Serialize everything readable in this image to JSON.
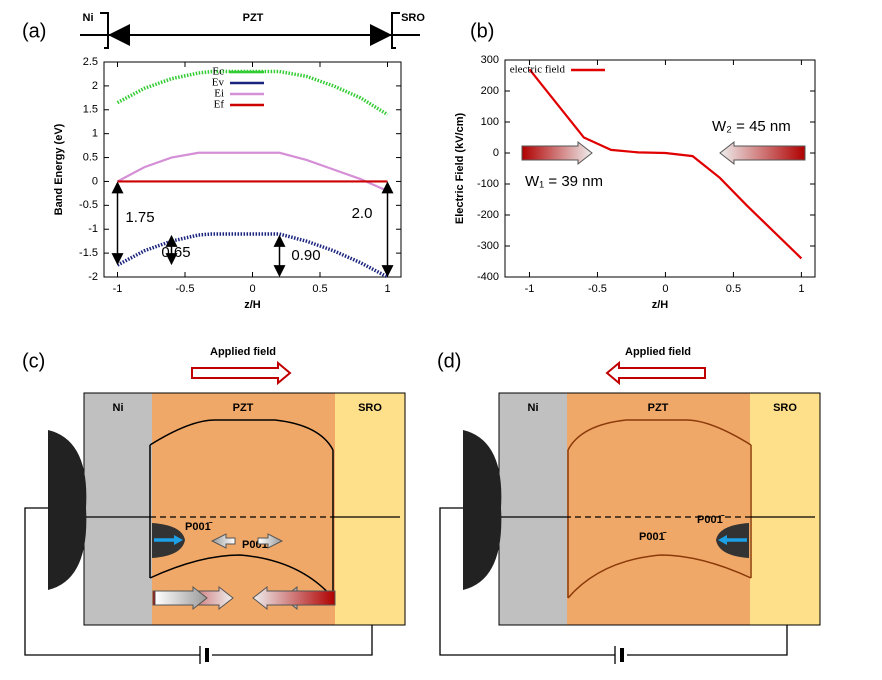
{
  "chart_data": [
    {
      "type": "line",
      "panel_label": "(a)",
      "header": [
        "Ni",
        "PZT",
        "SRO"
      ],
      "x_label": "z/H",
      "y_label": "Band Energy (eV)",
      "x": [
        -1,
        -0.8,
        -0.6,
        -0.4,
        -0.3,
        0,
        0.2,
        0.4,
        0.6,
        0.8,
        1
      ],
      "series": [
        {
          "name": "Ec",
          "color": "#33cc33",
          "style": "dotted",
          "values": [
            1.65,
            1.95,
            2.15,
            2.27,
            2.3,
            2.3,
            2.3,
            2.2,
            2.0,
            1.75,
            1.4
          ]
        },
        {
          "name": "Ev",
          "color": "#1a237e",
          "style": "dotted",
          "values": [
            -1.75,
            -1.45,
            -1.25,
            -1.12,
            -1.1,
            -1.1,
            -1.1,
            -1.25,
            -1.45,
            -1.7,
            -2.0
          ]
        },
        {
          "name": "Ei",
          "color": "#d58fd6",
          "style": "solid",
          "values": [
            0,
            0.3,
            0.5,
            0.6,
            0.6,
            0.6,
            0.6,
            0.45,
            0.25,
            0.05,
            -0.2
          ]
        },
        {
          "name": "Ef",
          "color": "#cc0000",
          "style": "solid",
          "values": [
            0,
            0,
            0,
            0,
            0,
            0,
            0,
            0,
            0,
            0,
            0
          ]
        }
      ],
      "xlim": [
        -1.1,
        1.1
      ],
      "ylim": [
        -2,
        2.5
      ],
      "xticks": [
        -1,
        -0.5,
        0,
        0.5,
        1
      ],
      "yticks": [
        -2,
        -1.5,
        -1,
        -0.5,
        0,
        0.5,
        1,
        1.5,
        2,
        2.5
      ],
      "legend": "upper right",
      "annotations": [
        "1.75",
        "0.65",
        "0.90",
        "2.0"
      ]
    },
    {
      "type": "line",
      "panel_label": "(b)",
      "x_label": "z/H",
      "y_label": "Electric Field  (kV/cm)",
      "x": [
        -1,
        -0.8,
        -0.6,
        -0.4,
        -0.2,
        0,
        0.2,
        0.4,
        0.6,
        0.8,
        1
      ],
      "series": [
        {
          "name": "electric field",
          "color": "#e00000",
          "style": "solid",
          "values": [
            270,
            160,
            50,
            10,
            2,
            0,
            -10,
            -80,
            -170,
            -255,
            -340
          ]
        }
      ],
      "xlim": [
        -1.18,
        1.1
      ],
      "ylim": [
        -400,
        300
      ],
      "xticks": [
        -1,
        -0.5,
        0,
        0.5,
        1
      ],
      "yticks": [
        -400,
        -300,
        -200,
        -100,
        0,
        100,
        200,
        300
      ],
      "legend": "upper left",
      "annotations": [
        "W₁ = 39 nm",
        "W₂ = 45 nm"
      ]
    }
  ],
  "diagrams": [
    {
      "label": "(c)",
      "field": "Applied field",
      "layers": [
        "Ni",
        "PZT",
        "SRO"
      ],
      "polarization": [
        "P001̄",
        "P001"
      ]
    },
    {
      "label": "(d)",
      "field": "Applied field",
      "layers": [
        "Ni",
        "PZT",
        "SRO"
      ],
      "polarization": [
        "P001̄",
        "P001̄"
      ]
    }
  ]
}
